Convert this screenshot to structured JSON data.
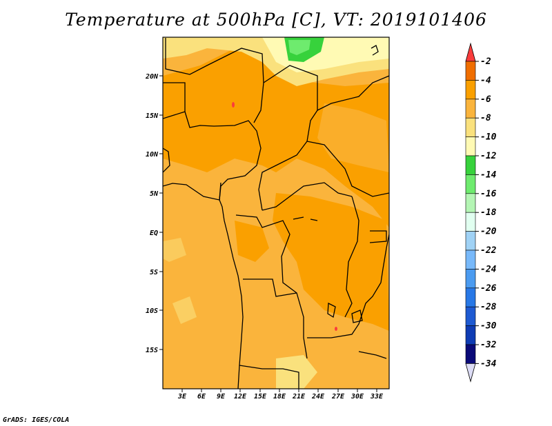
{
  "title": "Temperature at 500hPa [C], VT: 2019101406",
  "credit": "GrADS: IGES/COLA",
  "map": {
    "lat_labels": [
      "20N",
      "15N",
      "10N",
      "5N",
      "EQ",
      "5S",
      "10S",
      "15S"
    ],
    "lon_labels": [
      "3E",
      "6E",
      "9E",
      "12E",
      "15E",
      "18E",
      "21E",
      "24E",
      "27E",
      "30E",
      "33E"
    ]
  },
  "legend": {
    "labels": [
      "-2",
      "-4",
      "-6",
      "-8",
      "-10",
      "-12",
      "-14",
      "-16",
      "-18",
      "-20",
      "-22",
      "-24",
      "-26",
      "-28",
      "-30",
      "-32",
      "-34"
    ],
    "colors": [
      "#fa3c3c",
      "#f06e00",
      "#faa000",
      "#fab43c",
      "#fae17d",
      "#fffab4",
      "#37d23c",
      "#6eeb6e",
      "#b4f5b4",
      "#e1fff0",
      "#a0d2f5",
      "#78b9fa",
      "#4b9bf0",
      "#2878e6",
      "#1e5ad2",
      "#0f3cb4",
      "#0a0a78"
    ],
    "top_arrow_color": "#fa3c3c",
    "bottom_arrow_color": "#dcdcf5"
  }
}
